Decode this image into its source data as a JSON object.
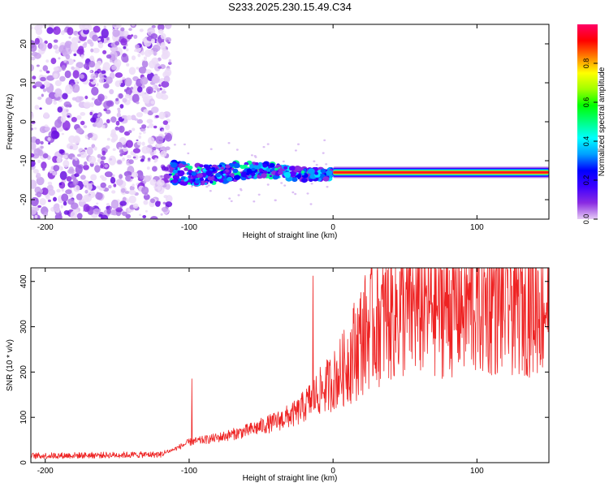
{
  "title": "S233.2025.230.15.49.C34",
  "chart_data": [
    {
      "type": "heatmap",
      "name": "spectrogram",
      "xlabel": "Height of straight line (km)",
      "ylabel": "Frequency (Hz)",
      "xlim": [
        -210,
        150
      ],
      "ylim": [
        -25,
        25
      ],
      "xticks": [
        -200,
        -100,
        0,
        100
      ],
      "yticks": [
        -20,
        -10,
        0,
        10,
        20
      ],
      "colorbar": {
        "label": "Normalized spectral amplitude",
        "range": [
          0,
          1
        ],
        "ticks": [
          "0.0",
          "0.2",
          "0.4",
          "0.6",
          "0.8"
        ],
        "colors": [
          "#e6ccf5",
          "#8a2be2",
          "#3d00ff",
          "#0000ff",
          "#00a0ff",
          "#00ffff",
          "#00ff80",
          "#00ff00",
          "#a0ff00",
          "#ffff00",
          "#ff8000",
          "#ff0000",
          "#ff0066"
        ]
      },
      "features": {
        "noise_region_x": [
          -210,
          -113
        ],
        "noise_band_x": [
          -113,
          0
        ],
        "noise_band_center_hz": -13,
        "tone_x": [
          0,
          150
        ],
        "tone_center_hz": -13
      }
    },
    {
      "type": "line",
      "name": "snr",
      "xlabel": "Height of straight line (km)",
      "ylabel": "SNR (10 * v/v)",
      "xlim": [
        -210,
        150
      ],
      "ylim": [
        0,
        430
      ],
      "xticks": [
        -200,
        -100,
        0,
        100
      ],
      "yticks": [
        0,
        100,
        200,
        300,
        400
      ],
      "color": "#ee2222",
      "trend": [
        {
          "x": -210,
          "y": 15
        },
        {
          "x": -120,
          "y": 18
        },
        {
          "x": -110,
          "y": 30
        },
        {
          "x": -100,
          "y": 45
        },
        {
          "x": -80,
          "y": 55
        },
        {
          "x": -60,
          "y": 70
        },
        {
          "x": -40,
          "y": 90
        },
        {
          "x": -25,
          "y": 110
        },
        {
          "x": -15,
          "y": 140
        },
        {
          "x": -8,
          "y": 160
        },
        {
          "x": 0,
          "y": 180
        },
        {
          "x": 8,
          "y": 210
        },
        {
          "x": 15,
          "y": 250
        },
        {
          "x": 25,
          "y": 300
        },
        {
          "x": 40,
          "y": 330
        },
        {
          "x": 60,
          "y": 345
        },
        {
          "x": 80,
          "y": 350
        },
        {
          "x": 100,
          "y": 350
        },
        {
          "x": 120,
          "y": 355
        },
        {
          "x": 150,
          "y": 355
        }
      ],
      "spikes": [
        {
          "x": -98,
          "y": 185
        },
        {
          "x": -14,
          "y": 412
        },
        {
          "x": 70,
          "y": 370
        },
        {
          "x": 112,
          "y": 420
        },
        {
          "x": 130,
          "y": 415
        },
        {
          "x": 145,
          "y": 400
        }
      ]
    }
  ]
}
